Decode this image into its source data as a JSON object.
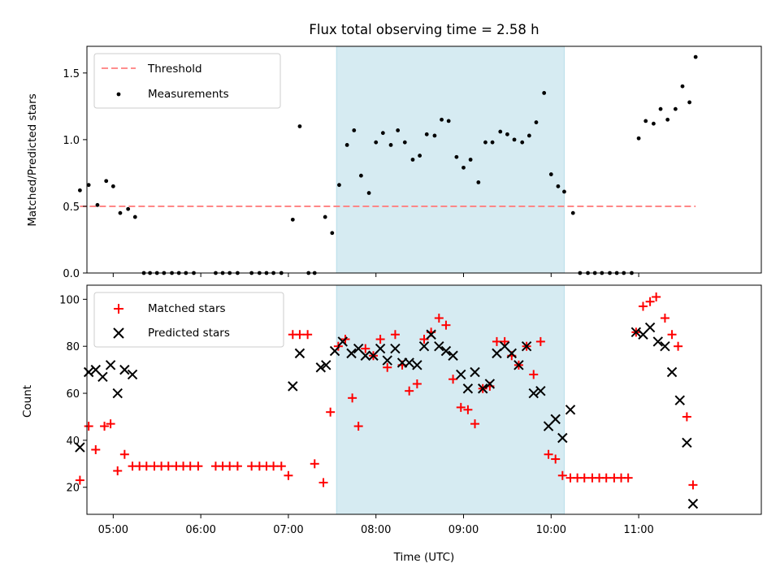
{
  "chart_data": [
    {
      "type": "scatter",
      "title": "Flux total observing time = 2.58 h",
      "xlabel": "",
      "ylabel": "Matched/Predicted stars",
      "ylim": [
        0,
        1.7
      ],
      "xlim": [
        4.7,
        12.4
      ],
      "yticks": [
        0.0,
        0.5,
        1.0,
        1.5
      ],
      "ytick_labels": [
        "0.0",
        "0.5",
        "1.0",
        "1.5"
      ],
      "legend_position": "upper-left",
      "highlight_span": [
        7.55,
        10.15
      ],
      "threshold": {
        "name": "Threshold",
        "y": 0.5,
        "x_range": [
          4.62,
          11.65
        ],
        "color": "#ff7f7f"
      },
      "series": [
        {
          "name": "Measurements",
          "color": "#000000",
          "marker": "dot",
          "x": [
            4.62,
            4.72,
            4.82,
            4.92,
            5.0,
            5.08,
            5.17,
            5.25,
            5.35,
            5.42,
            5.5,
            5.58,
            5.67,
            5.75,
            5.83,
            5.92,
            6.17,
            6.25,
            6.33,
            6.42,
            6.58,
            6.67,
            6.75,
            6.83,
            6.92,
            7.05,
            7.13,
            7.23,
            7.3,
            7.42,
            7.5,
            7.58,
            7.67,
            7.75,
            7.83,
            7.92,
            8.0,
            8.08,
            8.17,
            8.25,
            8.33,
            8.42,
            8.5,
            8.58,
            8.67,
            8.75,
            8.83,
            8.92,
            9.0,
            9.08,
            9.17,
            9.25,
            9.33,
            9.42,
            9.5,
            9.58,
            9.67,
            9.75,
            9.83,
            9.92,
            10.0,
            10.08,
            10.15,
            10.25,
            10.33,
            10.42,
            10.5,
            10.58,
            10.67,
            10.75,
            10.83,
            10.92,
            11.0,
            11.08,
            11.17,
            11.25,
            11.33,
            11.42,
            11.5,
            11.58,
            11.65
          ],
          "y": [
            0.62,
            0.66,
            0.51,
            0.69,
            0.65,
            0.45,
            0.48,
            0.42,
            0,
            0,
            0,
            0,
            0,
            0,
            0,
            0,
            0,
            0,
            0,
            0,
            0,
            0,
            0,
            0,
            0,
            0.4,
            1.1,
            0,
            0,
            0.42,
            0.3,
            0.66,
            0.96,
            1.07,
            0.73,
            0.6,
            0.98,
            1.05,
            0.96,
            1.07,
            0.98,
            0.85,
            0.88,
            1.04,
            1.03,
            1.15,
            1.14,
            0.87,
            0.79,
            0.85,
            0.68,
            0.98,
            0.98,
            1.06,
            1.04,
            1.0,
            0.98,
            1.03,
            1.13,
            1.35,
            0.74,
            0.65,
            0.61,
            0.45,
            0,
            0,
            0,
            0,
            0,
            0,
            0,
            0,
            1.01,
            1.14,
            1.12,
            1.23,
            1.15,
            1.23,
            1.4,
            1.28,
            1.62
          ]
        }
      ]
    },
    {
      "type": "scatter",
      "title": "",
      "xlabel": "Time (UTC)",
      "ylabel": "Count",
      "ylim": [
        8.5,
        106
      ],
      "xlim": [
        4.7,
        12.4
      ],
      "yticks": [
        20,
        40,
        60,
        80,
        100
      ],
      "ytick_labels": [
        "20",
        "40",
        "60",
        "80",
        "100"
      ],
      "xticks": [
        5,
        6,
        7,
        8,
        9,
        10,
        11
      ],
      "xtick_labels": [
        "05:00",
        "06:00",
        "07:00",
        "08:00",
        "09:00",
        "10:00",
        "11:00"
      ],
      "legend_position": "upper-left",
      "highlight_span": [
        7.55,
        10.15
      ],
      "series": [
        {
          "name": "Matched stars",
          "color": "#ff0000",
          "marker": "plus",
          "x": [
            4.62,
            4.72,
            4.8,
            4.9,
            4.97,
            5.05,
            5.13,
            5.22,
            5.3,
            5.38,
            5.47,
            5.55,
            5.63,
            5.72,
            5.8,
            5.88,
            5.97,
            6.17,
            6.25,
            6.33,
            6.42,
            6.58,
            6.67,
            6.75,
            6.83,
            6.92,
            7.0,
            7.05,
            7.13,
            7.22,
            7.3,
            7.4,
            7.48,
            7.57,
            7.65,
            7.73,
            7.8,
            7.88,
            7.97,
            8.05,
            8.13,
            8.22,
            8.3,
            8.38,
            8.47,
            8.55,
            8.63,
            8.72,
            8.8,
            8.88,
            8.97,
            9.05,
            9.13,
            9.22,
            9.3,
            9.38,
            9.47,
            9.55,
            9.63,
            9.72,
            9.8,
            9.88,
            9.97,
            10.05,
            10.13,
            10.22,
            10.3,
            10.38,
            10.47,
            10.55,
            10.63,
            10.72,
            10.8,
            10.88,
            10.97,
            11.05,
            11.13,
            11.2,
            11.3,
            11.38,
            11.45,
            11.55,
            11.62
          ],
          "y": [
            23,
            46,
            36,
            46,
            47,
            27,
            34,
            29,
            29,
            29,
            29,
            29,
            29,
            29,
            29,
            29,
            29,
            29,
            29,
            29,
            29,
            29,
            29,
            29,
            29,
            29,
            25,
            85,
            85,
            85,
            30,
            22,
            52,
            80,
            83,
            58,
            46,
            79,
            76,
            83,
            71,
            85,
            72,
            61,
            64,
            83,
            86,
            92,
            89,
            66,
            54,
            53,
            47,
            62,
            63,
            82,
            82,
            76,
            72,
            80,
            68,
            82,
            34,
            32,
            25,
            24,
            24,
            24,
            24,
            24,
            24,
            24,
            24,
            24,
            86,
            97,
            99,
            101,
            92,
            85,
            80,
            50,
            21
          ]
        },
        {
          "name": "Predicted stars",
          "color": "#000000",
          "marker": "x",
          "x": [
            4.62,
            4.72,
            4.8,
            4.88,
            4.97,
            5.05,
            5.13,
            5.22,
            7.05,
            7.13,
            7.37,
            7.43,
            7.53,
            7.62,
            7.72,
            7.8,
            7.88,
            7.97,
            8.05,
            8.13,
            8.22,
            8.3,
            8.38,
            8.47,
            8.55,
            8.63,
            8.72,
            8.8,
            8.88,
            8.97,
            9.05,
            9.13,
            9.22,
            9.3,
            9.38,
            9.47,
            9.55,
            9.63,
            9.72,
            9.8,
            9.88,
            9.97,
            10.05,
            10.13,
            10.22,
            10.97,
            11.05,
            11.13,
            11.22,
            11.3,
            11.38,
            11.47,
            11.55,
            11.62
          ],
          "y": [
            37,
            69,
            70,
            67,
            72,
            60,
            70,
            68,
            63,
            77,
            71,
            72,
            78,
            82,
            77,
            79,
            76,
            76,
            79,
            74,
            79,
            73,
            73,
            72,
            80,
            85,
            80,
            78,
            76,
            68,
            62,
            69,
            62,
            64,
            77,
            80,
            77,
            72,
            80,
            60,
            61,
            46,
            49,
            41,
            53,
            86,
            85,
            88,
            82,
            80,
            69,
            57,
            39,
            13
          ]
        }
      ]
    }
  ]
}
